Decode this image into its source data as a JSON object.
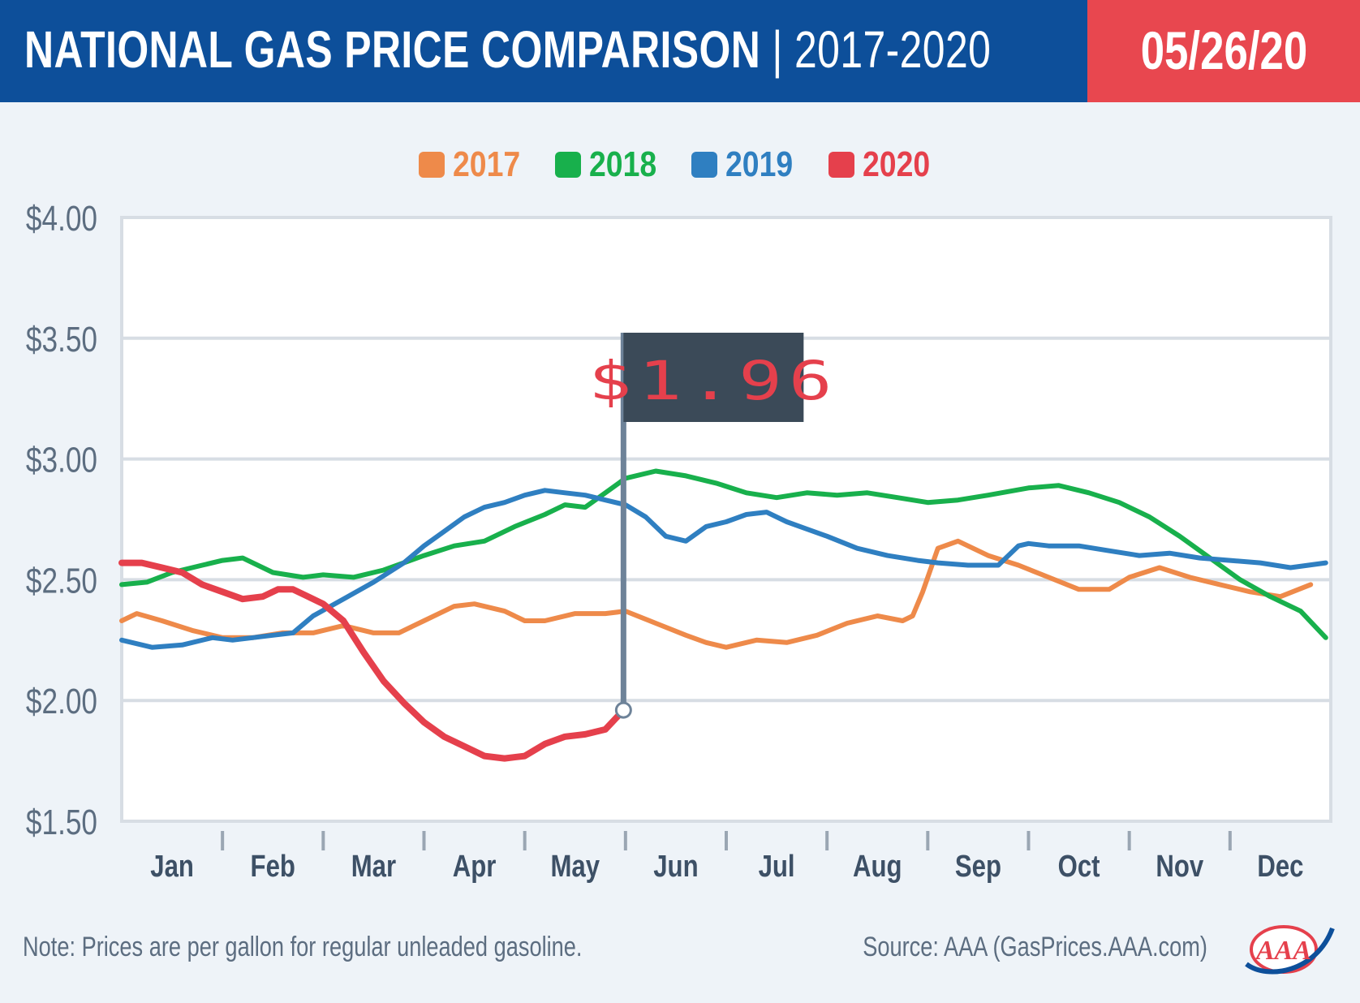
{
  "header": {
    "title_bold": "NATIONAL GAS PRICE COMPARISON",
    "title_rest": " | 2017-2020",
    "date": "05/26/20",
    "colors": {
      "blue": "#0d4f9a",
      "red": "#e8474f"
    }
  },
  "footer": {
    "note": "Note: Prices are per gallon for regular unleaded gasoline.",
    "source": "Source: AAA (GasPrices.AAA.com)",
    "logo_text": "AAA"
  },
  "chart_data": {
    "type": "line",
    "ylim": [
      1.5,
      4.0
    ],
    "y_ticks": [
      1.5,
      2.0,
      2.5,
      3.0,
      3.5,
      4.0
    ],
    "y_tick_labels": [
      "$1.50",
      "$2.00",
      "$2.50",
      "$3.00",
      "$3.50",
      "$4.00"
    ],
    "x_range": [
      0,
      12
    ],
    "month_labels": [
      "Jan",
      "Feb",
      "Mar",
      "Apr",
      "May",
      "Jun",
      "Jul",
      "Aug",
      "Sep",
      "Oct",
      "Nov",
      "Dec"
    ],
    "grid": "horizontal",
    "legend_position": "top-center",
    "callout": {
      "label": "$1.96",
      "series": "2020",
      "x": 4.98,
      "y": 1.96
    },
    "series": [
      {
        "name": "2017",
        "color": "#ee8a4a",
        "x": [
          0,
          0.15,
          0.4,
          0.7,
          1.0,
          1.3,
          1.6,
          1.9,
          2.2,
          2.5,
          2.75,
          3.0,
          3.3,
          3.5,
          3.8,
          4.0,
          4.2,
          4.5,
          4.8,
          5.0,
          5.3,
          5.6,
          5.8,
          6.0,
          6.3,
          6.6,
          6.9,
          7.2,
          7.5,
          7.75,
          7.85,
          7.95,
          8.1,
          8.3,
          8.6,
          8.9,
          9.2,
          9.5,
          9.8,
          10.0,
          10.3,
          10.6,
          10.9,
          11.2,
          11.5,
          11.8
        ],
        "y": [
          2.33,
          2.36,
          2.33,
          2.29,
          2.26,
          2.26,
          2.28,
          2.28,
          2.31,
          2.28,
          2.28,
          2.33,
          2.39,
          2.4,
          2.37,
          2.33,
          2.33,
          2.36,
          2.36,
          2.37,
          2.32,
          2.27,
          2.24,
          2.22,
          2.25,
          2.24,
          2.27,
          2.32,
          2.35,
          2.33,
          2.35,
          2.45,
          2.63,
          2.66,
          2.6,
          2.56,
          2.51,
          2.46,
          2.46,
          2.51,
          2.55,
          2.51,
          2.48,
          2.45,
          2.43,
          2.48
        ]
      },
      {
        "name": "2018",
        "color": "#18b04c",
        "x": [
          0,
          0.25,
          0.5,
          0.8,
          1.0,
          1.2,
          1.5,
          1.8,
          2.0,
          2.3,
          2.6,
          3.0,
          3.3,
          3.6,
          3.9,
          4.2,
          4.4,
          4.6,
          4.8,
          5.0,
          5.3,
          5.6,
          5.9,
          6.2,
          6.5,
          6.8,
          7.1,
          7.4,
          7.7,
          8.0,
          8.3,
          8.6,
          9.0,
          9.3,
          9.6,
          9.9,
          10.2,
          10.5,
          10.8,
          11.1,
          11.4,
          11.7,
          11.95
        ],
        "y": [
          2.48,
          2.49,
          2.53,
          2.56,
          2.58,
          2.59,
          2.53,
          2.51,
          2.52,
          2.51,
          2.54,
          2.6,
          2.64,
          2.66,
          2.72,
          2.77,
          2.81,
          2.8,
          2.86,
          2.92,
          2.95,
          2.93,
          2.9,
          2.86,
          2.84,
          2.86,
          2.85,
          2.86,
          2.84,
          2.82,
          2.83,
          2.85,
          2.88,
          2.89,
          2.86,
          2.82,
          2.76,
          2.68,
          2.59,
          2.5,
          2.43,
          2.37,
          2.26
        ]
      },
      {
        "name": "2019",
        "color": "#2f7fc1",
        "x": [
          0,
          0.3,
          0.6,
          0.9,
          1.1,
          1.3,
          1.5,
          1.7,
          1.9,
          2.2,
          2.5,
          2.8,
          3.0,
          3.2,
          3.4,
          3.6,
          3.8,
          4.0,
          4.2,
          4.4,
          4.6,
          4.8,
          5.0,
          5.2,
          5.4,
          5.6,
          5.8,
          6.0,
          6.2,
          6.4,
          6.6,
          6.8,
          7.0,
          7.3,
          7.6,
          7.9,
          8.1,
          8.4,
          8.7,
          8.9,
          9.0,
          9.2,
          9.5,
          9.8,
          10.1,
          10.4,
          10.7,
          11.0,
          11.3,
          11.6,
          11.95
        ],
        "y": [
          2.25,
          2.22,
          2.23,
          2.26,
          2.25,
          2.26,
          2.27,
          2.28,
          2.35,
          2.42,
          2.49,
          2.57,
          2.64,
          2.7,
          2.76,
          2.8,
          2.82,
          2.85,
          2.87,
          2.86,
          2.85,
          2.83,
          2.81,
          2.76,
          2.68,
          2.66,
          2.72,
          2.74,
          2.77,
          2.78,
          2.74,
          2.71,
          2.68,
          2.63,
          2.6,
          2.58,
          2.57,
          2.56,
          2.56,
          2.64,
          2.65,
          2.64,
          2.64,
          2.62,
          2.6,
          2.61,
          2.59,
          2.58,
          2.57,
          2.55,
          2.57
        ]
      },
      {
        "name": "2020",
        "color": "#e5404c",
        "x": [
          0,
          0.2,
          0.4,
          0.6,
          0.8,
          1.0,
          1.2,
          1.4,
          1.55,
          1.7,
          1.85,
          2.0,
          2.2,
          2.4,
          2.6,
          2.8,
          3.0,
          3.2,
          3.4,
          3.6,
          3.8,
          4.0,
          4.2,
          4.4,
          4.6,
          4.8,
          4.98
        ],
        "y": [
          2.57,
          2.57,
          2.55,
          2.53,
          2.48,
          2.45,
          2.42,
          2.43,
          2.46,
          2.46,
          2.43,
          2.4,
          2.33,
          2.2,
          2.08,
          1.99,
          1.91,
          1.85,
          1.81,
          1.77,
          1.76,
          1.77,
          1.82,
          1.85,
          1.86,
          1.88,
          1.96
        ]
      }
    ]
  }
}
